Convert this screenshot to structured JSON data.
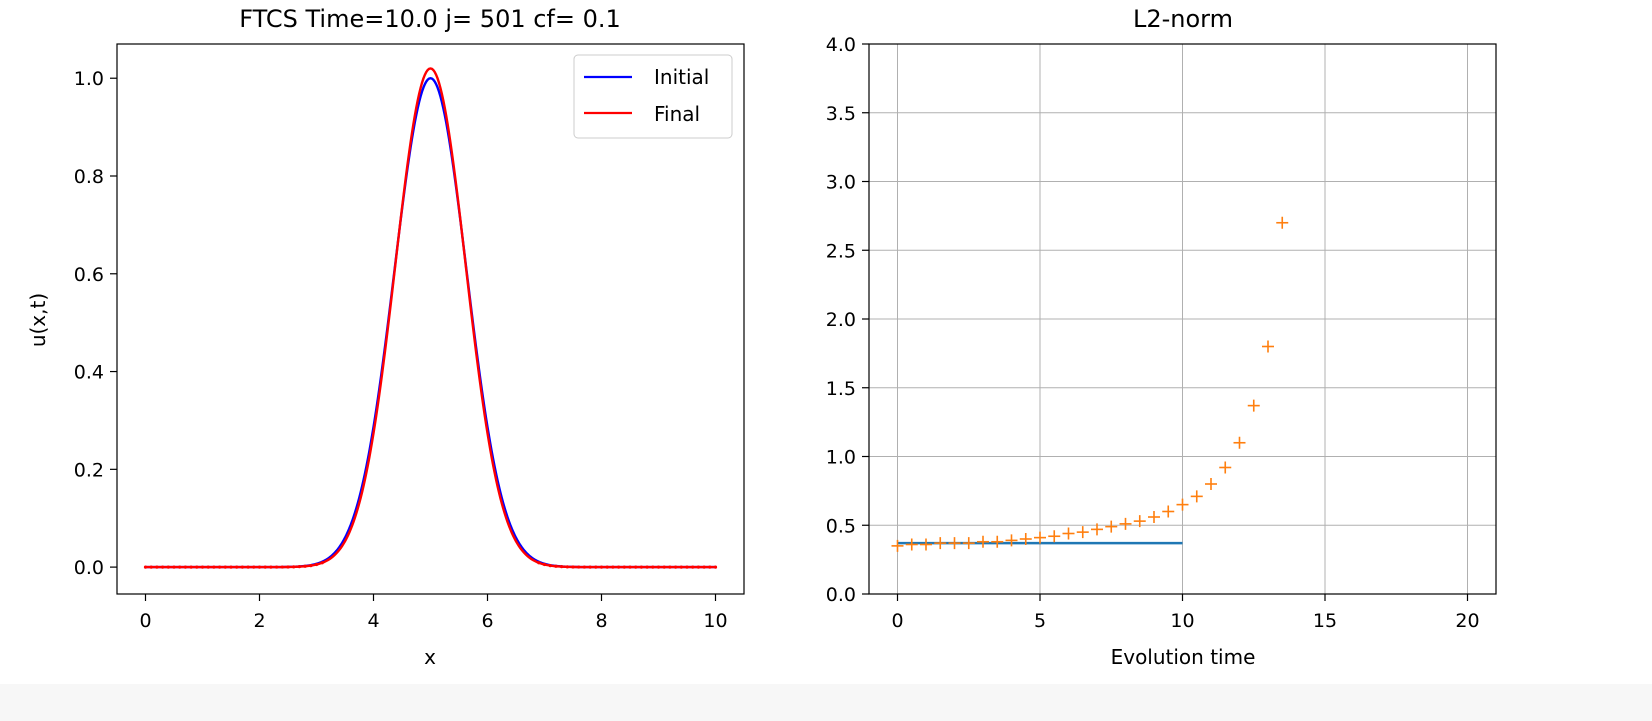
{
  "chart_data": [
    {
      "type": "line",
      "title": "FTCS  Time=10.0  j= 501  cf= 0.1",
      "xlabel": "x",
      "ylabel": "u(x,t)",
      "xlim": [
        -0.5,
        10.5
      ],
      "ylim": [
        -0.055,
        1.07
      ],
      "xticks": [
        0,
        2,
        4,
        6,
        8,
        10
      ],
      "xtick_labels": [
        "0",
        "2",
        "4",
        "6",
        "8",
        "10"
      ],
      "yticks": [
        0.0,
        0.2,
        0.4,
        0.6,
        0.8,
        1.0
      ],
      "ytick_labels": [
        "0.0",
        "0.2",
        "0.4",
        "0.6",
        "0.8",
        "1.0"
      ],
      "grid": false,
      "legend": {
        "placement": "upper right",
        "entries": [
          "Initial",
          "Final"
        ]
      },
      "series": [
        {
          "name": "Initial",
          "color": "#0000ff",
          "curve": "gaussian",
          "center": 5.0,
          "width": 0.8,
          "amplitude": 1.0
        },
        {
          "name": "Final",
          "color": "#ff0000",
          "curve": "gaussian",
          "center": 5.0,
          "width": 0.78,
          "amplitude": 1.02,
          "markers_near_zero": true
        }
      ],
      "x_range": [
        0,
        10
      ]
    },
    {
      "type": "line",
      "title": "L2-norm",
      "xlabel": "Evolution time",
      "ylabel": "",
      "xlim": [
        -1,
        21
      ],
      "ylim": [
        0,
        4
      ],
      "xticks": [
        0,
        5,
        10,
        15,
        20
      ],
      "xtick_labels": [
        "0",
        "5",
        "10",
        "15",
        "20"
      ],
      "yticks": [
        0.0,
        0.5,
        1.0,
        1.5,
        2.0,
        2.5,
        3.0,
        3.5,
        4.0
      ],
      "ytick_labels": [
        "0.0",
        "0.5",
        "1.0",
        "1.5",
        "2.0",
        "2.5",
        "3.0",
        "3.5",
        "4.0"
      ],
      "grid": true,
      "series": [
        {
          "color": "#1f77b4",
          "style": "line",
          "x": [
            0,
            10
          ],
          "y": [
            0.37,
            0.37
          ]
        },
        {
          "color": "#ff7f0e",
          "style": "plus-markers",
          "x": [
            0,
            0.5,
            1,
            1.5,
            2,
            2.5,
            3,
            3.5,
            4,
            4.5,
            5,
            5.5,
            6,
            6.5,
            7,
            7.5,
            8,
            8.5,
            9,
            9.5,
            10,
            10.5,
            11,
            11.5,
            12,
            12.5,
            13,
            13.5
          ],
          "y": [
            0.35,
            0.36,
            0.36,
            0.37,
            0.37,
            0.37,
            0.38,
            0.38,
            0.39,
            0.4,
            0.41,
            0.42,
            0.44,
            0.45,
            0.47,
            0.49,
            0.51,
            0.53,
            0.56,
            0.6,
            0.65,
            0.71,
            0.8,
            0.92,
            1.1,
            1.37,
            1.8,
            2.7
          ]
        }
      ]
    }
  ]
}
